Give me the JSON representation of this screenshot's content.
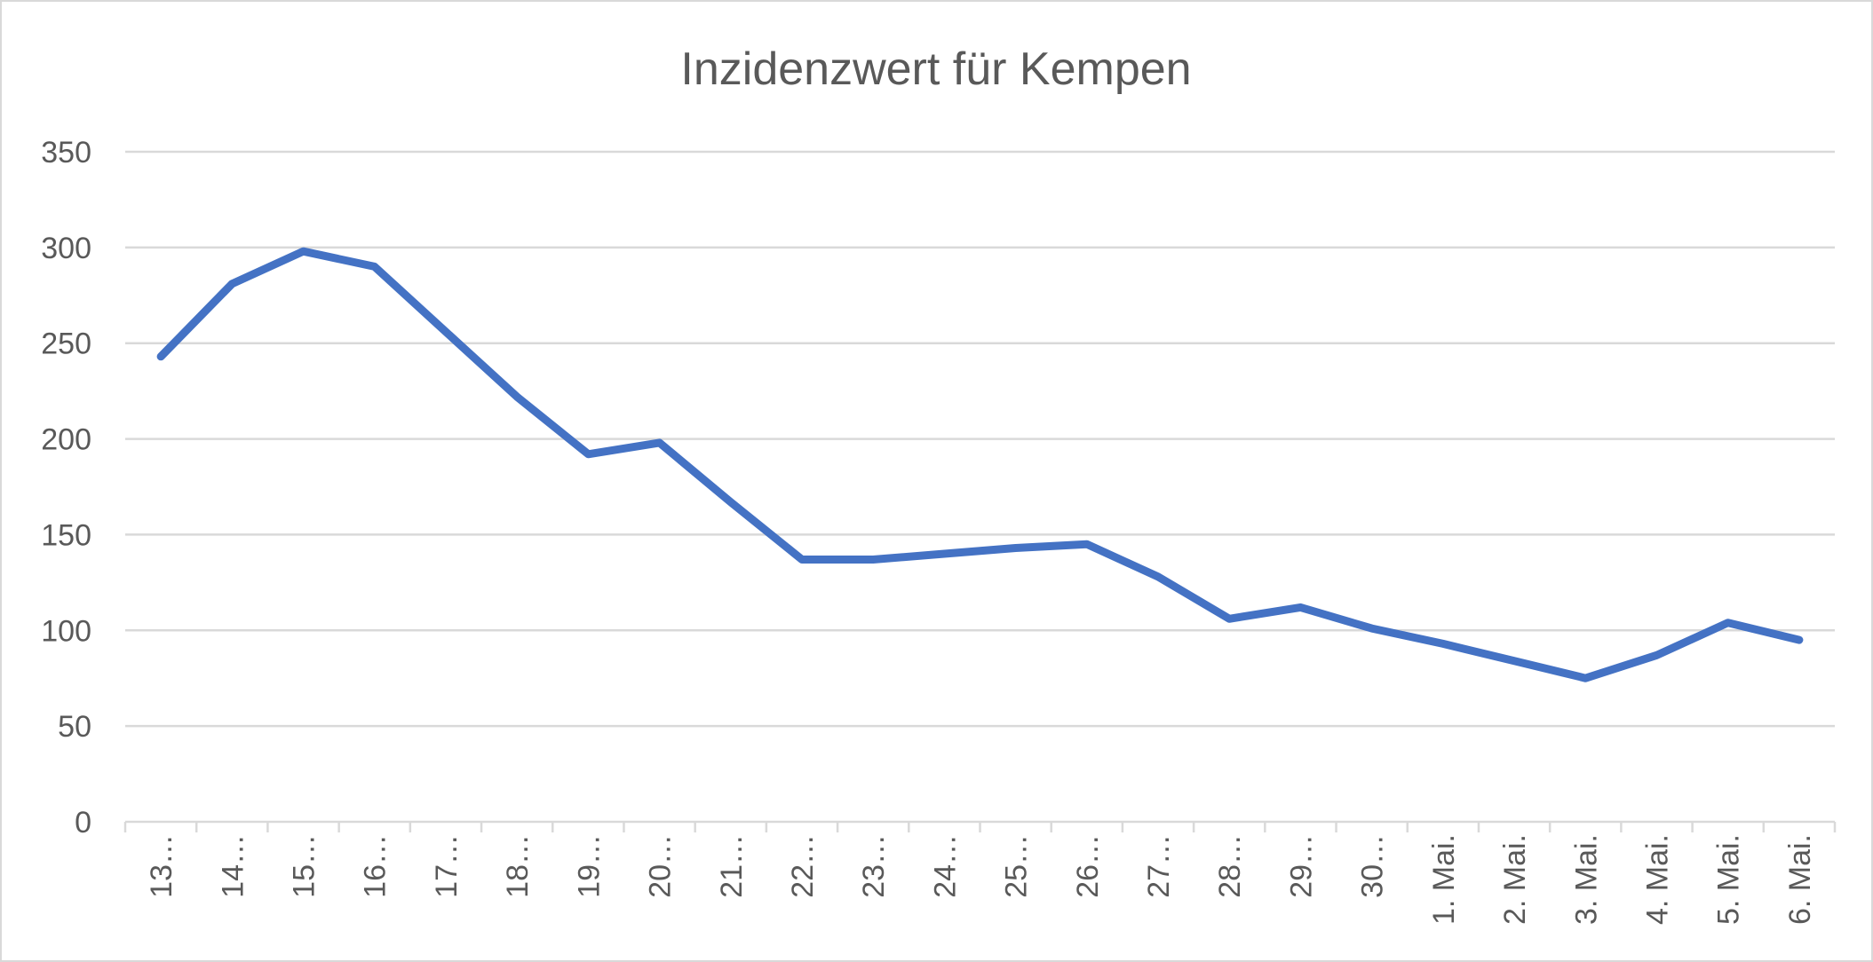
{
  "chart_data": {
    "type": "line",
    "title": "Inzidenzwert für Kempen",
    "categories": [
      "13…",
      "14…",
      "15…",
      "16…",
      "17…",
      "18…",
      "19…",
      "20…",
      "21…",
      "22…",
      "23…",
      "24…",
      "25…",
      "26…",
      "27…",
      "28…",
      "29…",
      "30…",
      "1. Mai.",
      "2. Mai.",
      "3. Mai.",
      "4. Mai.",
      "5. Mai.",
      "6. Mai."
    ],
    "series": [
      {
        "values": [
          243,
          281,
          298,
          290,
          256,
          222,
          192,
          198,
          167,
          137,
          137,
          140,
          143,
          145,
          128,
          106,
          112,
          101,
          93,
          84,
          75,
          87,
          104,
          95
        ],
        "color": "#4472c4"
      }
    ],
    "ylim": [
      0,
      350
    ],
    "yticks": [
      0,
      50,
      100,
      150,
      200,
      250,
      300,
      350
    ],
    "grid": true,
    "legend": "none"
  }
}
